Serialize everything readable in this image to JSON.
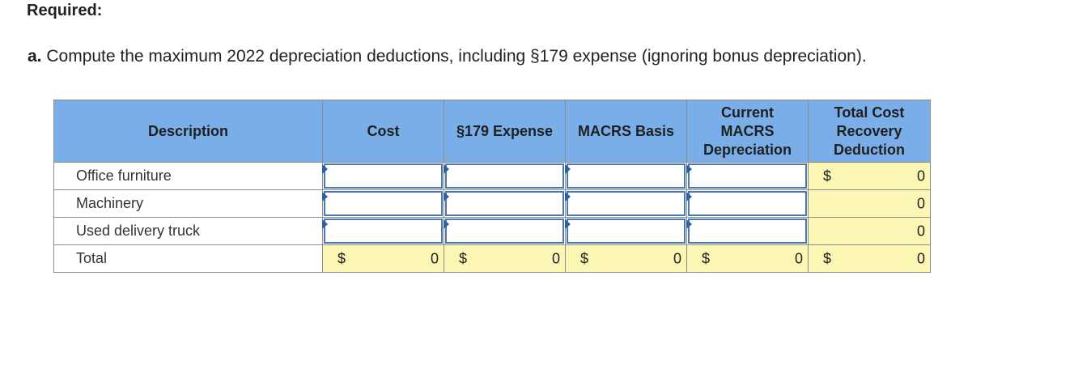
{
  "required_label": "Required:",
  "question": {
    "label": "a.",
    "text": "Compute the maximum 2022 depreciation deductions, including §179 expense (ignoring bonus depreciation)."
  },
  "table": {
    "headers": {
      "description": "Description",
      "cost": "Cost",
      "expense179": "§179 Expense",
      "macrs_basis": "MACRS Basis",
      "current_macrs": "Current MACRS Depreciation",
      "total_cost_recovery": "Total Cost Recovery Deduction"
    },
    "rows": [
      {
        "description": "Office furniture",
        "total_currency": "$",
        "total_value": "0"
      },
      {
        "description": "Machinery",
        "total_currency": "",
        "total_value": "0"
      },
      {
        "description": "Used delivery truck",
        "total_currency": "",
        "total_value": "0"
      }
    ],
    "total_row": {
      "label": "Total",
      "currency": "$",
      "cost": "0",
      "expense179": "0",
      "macrs_basis": "0",
      "current_macrs": "0",
      "total_cost_recovery": "0"
    }
  },
  "colors": {
    "header_bg": "#7aaee8",
    "calc_bg": "#fbf6b4",
    "input_border": "#4a78b2"
  }
}
